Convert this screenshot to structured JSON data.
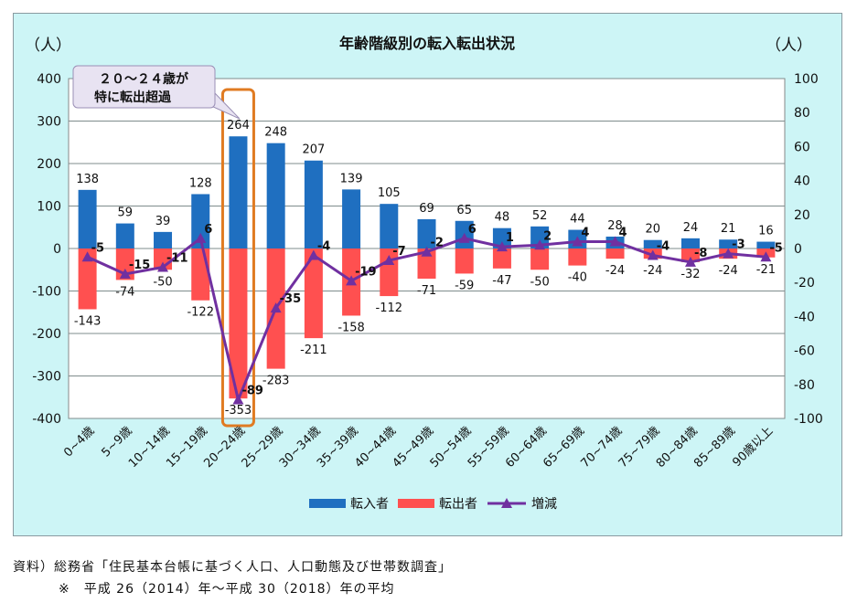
{
  "chart_data": {
    "type": "bar+line",
    "title": "年齢階級別の転入転出状況",
    "left_unit": "（人）",
    "right_unit": "（人）",
    "left_ylim": [
      -400,
      400
    ],
    "left_ticks": [
      "400",
      "300",
      "200",
      "100",
      "0",
      "-100",
      "-200",
      "-300",
      "-400"
    ],
    "right_ylim": [
      -100,
      100
    ],
    "right_ticks": [
      "100",
      "80",
      "60",
      "40",
      "20",
      "0",
      "-20",
      "-40",
      "-60",
      "-80",
      "-100"
    ],
    "categories": [
      "0~4歳",
      "5~9歳",
      "10~14歳",
      "15~19歳",
      "20~24歳",
      "25~29歳",
      "30~34歳",
      "35~39歳",
      "40~44歳",
      "45~49歳",
      "50~54歳",
      "55~59歳",
      "60~64歳",
      "65~69歳",
      "70~74歳",
      "75~79歳",
      "80~84歳",
      "85~89歳",
      "90歳以上"
    ],
    "series": [
      {
        "name": "転入者",
        "axis": "left",
        "color": "#1f6fc0",
        "values": [
          138,
          59,
          39,
          128,
          264,
          248,
          207,
          139,
          105,
          69,
          65,
          48,
          52,
          44,
          28,
          20,
          24,
          21,
          16
        ],
        "labels": [
          "138",
          "59",
          "39",
          "128",
          "264",
          "248",
          "207",
          "139",
          "105",
          "69",
          "65",
          "48",
          "52",
          "44",
          "28",
          "20",
          "24",
          "21",
          "16"
        ]
      },
      {
        "name": "転出者",
        "axis": "left",
        "color": "#ff5050",
        "values": [
          -143,
          -74,
          -50,
          -122,
          -353,
          -283,
          -211,
          -158,
          -112,
          -71,
          -59,
          -47,
          -50,
          -40,
          -24,
          -24,
          -32,
          -24,
          -21
        ],
        "labels": [
          "-143",
          "-74",
          "-50",
          "-122",
          "-353",
          "-283",
          "-211",
          "-158",
          "-112",
          "-71",
          "-59",
          "-47",
          "-50",
          "-40",
          "-24",
          "-24",
          "-32",
          "-24",
          "-21"
        ]
      },
      {
        "name": "増減",
        "axis": "right",
        "color": "#7030a0",
        "values": [
          -5,
          -15,
          -11,
          6,
          -89,
          -35,
          -4,
          -19,
          -7,
          -2,
          6,
          1,
          2,
          4,
          4,
          -4,
          -8,
          -3,
          -5
        ],
        "labels": [
          "-5",
          "-15",
          "-11",
          "6",
          "-89",
          "-35",
          "-4",
          "-19",
          "-7",
          "-2",
          "6",
          "1",
          "2",
          "4",
          "4",
          "-4",
          "-8",
          "-3",
          "-5"
        ]
      }
    ],
    "callout": {
      "line1": "２０～２４歳が",
      "line2": "特に転出超過",
      "target_category": "20~24歳"
    },
    "legend": {
      "position": "bottom",
      "items": [
        "転入者",
        "転出者",
        "増減"
      ]
    }
  },
  "colors": {
    "background": "#cdf5f6",
    "plot_bg": "#ffffff",
    "grid": "#7f8c8c",
    "highlight": "#e07b22",
    "callout_fill": "#e8e3f2"
  },
  "source": {
    "line1": "資料）総務省「住民基本台帳に基づく人口、人口動態及び世帯数調査」",
    "line2": "※　平成 26（2014）年～平成 30（2018）年の平均"
  }
}
